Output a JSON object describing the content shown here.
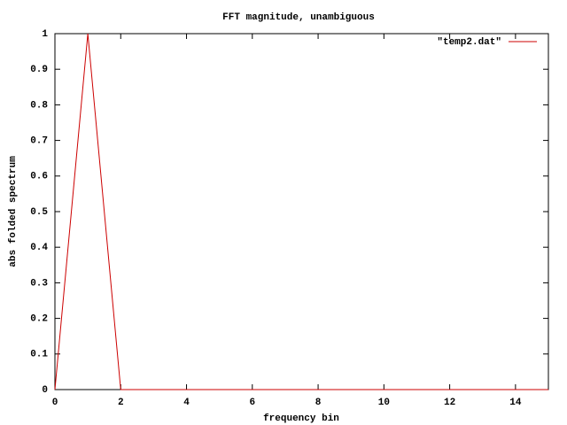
{
  "chart_data": {
    "type": "line",
    "title": "FFT magnitude, unambiguous",
    "x_label": "frequency bin",
    "y_label": "abs folded spectrum",
    "x": [
      0,
      1,
      2,
      3,
      4,
      5,
      6,
      7,
      8,
      9,
      10,
      11,
      12,
      13,
      14,
      15
    ],
    "series": [
      {
        "name": "\"temp2.dat\"",
        "color": "#cc0000",
        "values": [
          0,
          1,
          0,
          0,
          0,
          0,
          0,
          0,
          0,
          0,
          0,
          0,
          0,
          0,
          0,
          0
        ]
      }
    ],
    "xlim": [
      0,
      15
    ],
    "xticks": [
      0,
      2,
      4,
      6,
      8,
      10,
      12,
      14
    ],
    "ylim": [
      0,
      1
    ],
    "yticks": [
      0,
      0.1,
      0.2,
      0.3,
      0.4,
      0.5,
      0.6,
      0.7,
      0.8,
      0.9,
      1
    ],
    "grid": false,
    "legend": "top-right"
  }
}
